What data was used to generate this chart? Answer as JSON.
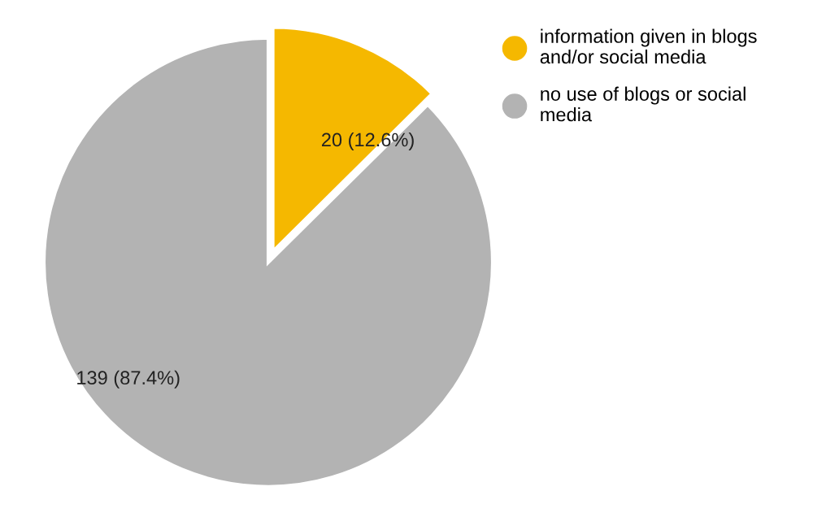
{
  "chart_data": {
    "type": "pie",
    "categories": [
      "information given in blogs and/or social media",
      "no use of blogs or social media"
    ],
    "values": [
      20,
      139
    ],
    "colors": [
      "#f5b800",
      "#b3b3b3"
    ],
    "value_labels": [
      "20 (12.6%)",
      "139 (87.4%)"
    ],
    "legend": "top right"
  }
}
